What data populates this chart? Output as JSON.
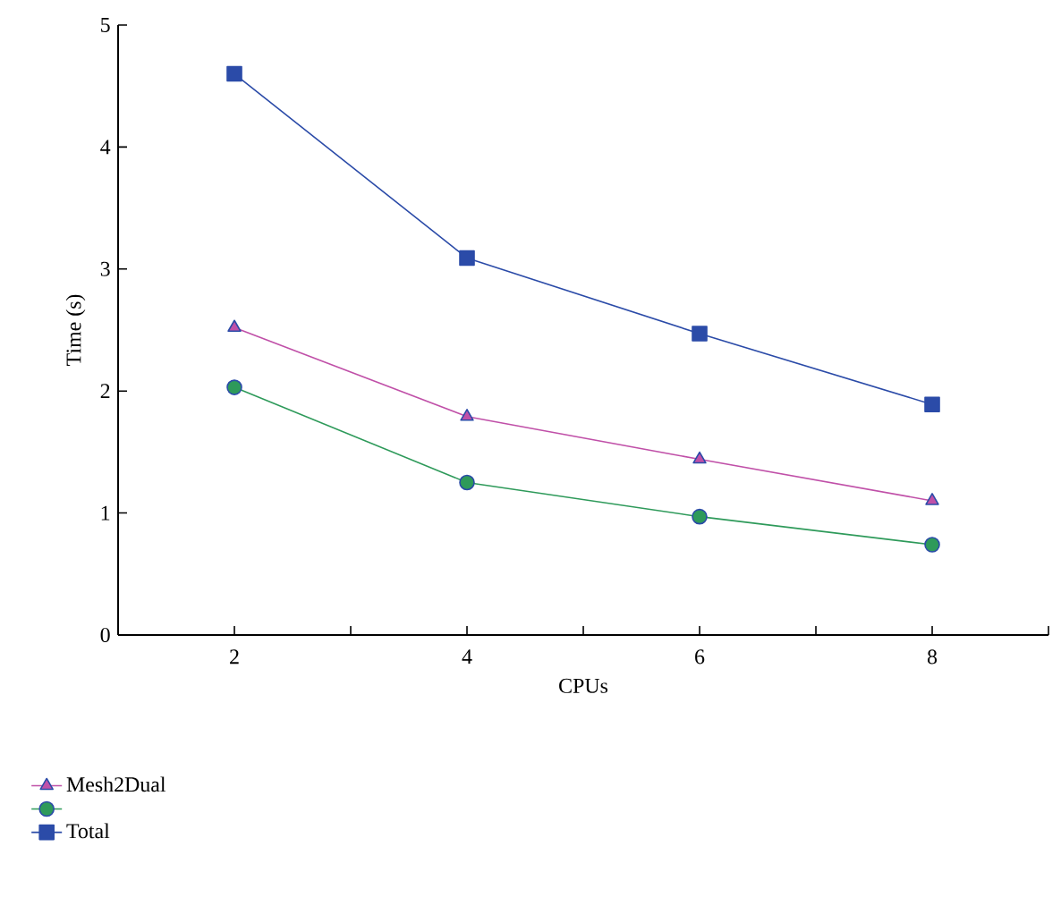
{
  "chart_data": {
    "type": "line",
    "xlabel": "CPUs",
    "ylabel": "Time (s)",
    "x": [
      2,
      4,
      6,
      8
    ],
    "xlim": [
      1,
      9
    ],
    "xticks": [
      2,
      {
        "value": 3,
        "label": null
      },
      4,
      {
        "value": 5,
        "label": null
      },
      6,
      {
        "value": 7,
        "label": null
      },
      8,
      {
        "value": 9,
        "label": null
      }
    ],
    "ylim": [
      0,
      5
    ],
    "yticks": [
      0,
      1,
      2,
      3,
      4,
      5
    ],
    "grid": false,
    "legend": "bottom left",
    "series": [
      {
        "name": "Mesh2Dual",
        "color": "#c050a8",
        "marker": "triangle",
        "values": [
          2.52,
          1.79,
          1.44,
          1.1
        ]
      },
      {
        "color": "#2e9a5a",
        "marker": "circle",
        "values": [
          2.03,
          1.25,
          0.97,
          0.74
        ]
      },
      {
        "name": "Total",
        "color": "#2b4ba8",
        "marker": "square",
        "values": [
          4.6,
          3.09,
          2.47,
          1.89
        ]
      }
    ]
  }
}
